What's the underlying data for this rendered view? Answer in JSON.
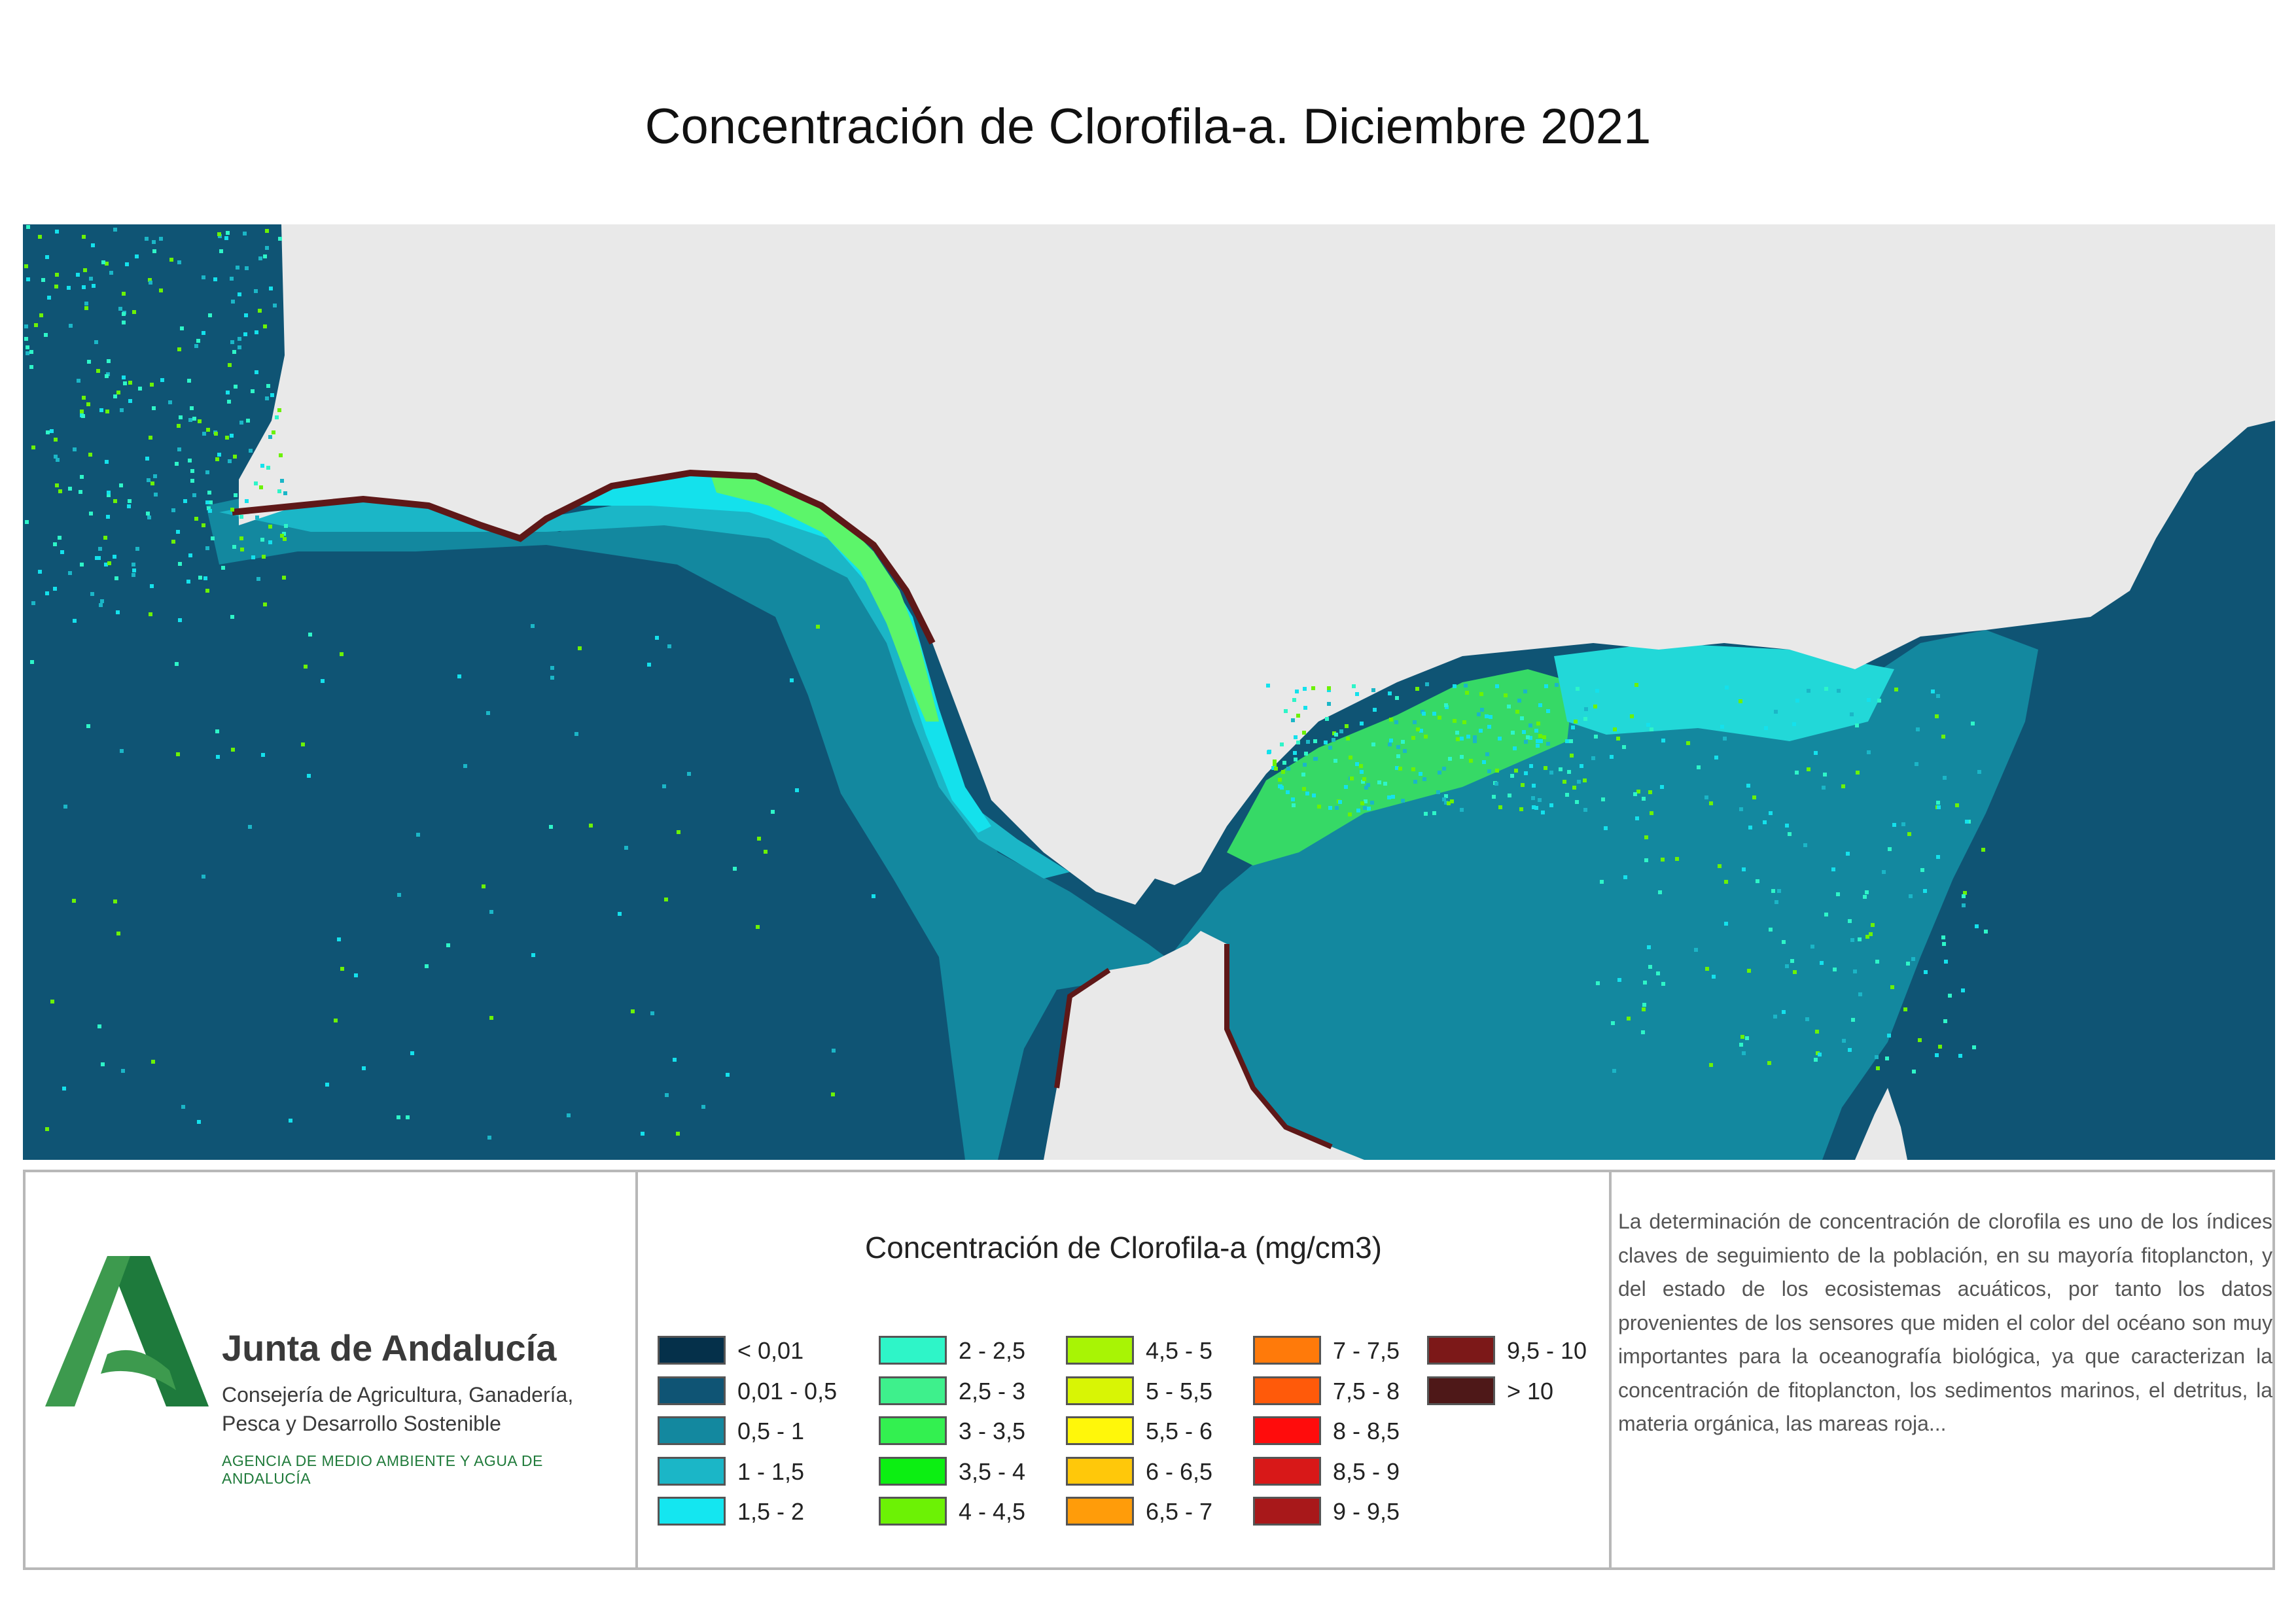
{
  "title": "Concentración de Clorofila-a. Diciembre 2021",
  "map": {
    "colors": {
      "land": "#e9e9e9",
      "ocean_deep": "#0f5474",
      "ocean_mid": "#13889f",
      "shelf_1": "#1bb6c7",
      "shelf_2": "#14e1ec",
      "coast_high": "#5e1818"
    }
  },
  "logo": {
    "org_name": "Junta de Andalucía",
    "dept": "Consejería de Agricultura, Ganadería, Pesca y Desarrollo Sostenible",
    "agency": "AGENCIA DE MEDIO AMBIENTE Y AGUA DE ANDALUCÍA",
    "colors": {
      "dark_green": "#1e7a3c",
      "light_green": "#3d9a4e"
    }
  },
  "legend": {
    "title": "Concentración de Clorofila-a (mg/cm3)",
    "items": [
      {
        "label": "< 0,01",
        "color": "#05304a"
      },
      {
        "label": "0,01 - 0,5",
        "color": "#0f5474"
      },
      {
        "label": "0,5 - 1",
        "color": "#13889f"
      },
      {
        "label": "1 - 1,5",
        "color": "#1bb6c7"
      },
      {
        "label": "1,5 - 2",
        "color": "#14e6f0"
      },
      {
        "label": "2 - 2,5",
        "color": "#2ef5c8"
      },
      {
        "label": "2,5 - 3",
        "color": "#3ef08c"
      },
      {
        "label": "3 - 3,5",
        "color": "#33f050"
      },
      {
        "label": "3,5 - 4",
        "color": "#0cef12"
      },
      {
        "label": "4 - 4,5",
        "color": "#6cf205"
      },
      {
        "label": "4,5 - 5",
        "color": "#a8f405"
      },
      {
        "label": "5 - 5,5",
        "color": "#d8f505"
      },
      {
        "label": "5,5 - 6",
        "color": "#fff70a"
      },
      {
        "label": "6 - 6,5",
        "color": "#ffc80a"
      },
      {
        "label": "6,5 - 7",
        "color": "#ff9c0a"
      },
      {
        "label": "7 - 7,5",
        "color": "#ff7a0a"
      },
      {
        "label": "7,5 - 8",
        "color": "#ff5a0a"
      },
      {
        "label": "8 - 8,5",
        "color": "#ff0c0c"
      },
      {
        "label": "8,5 - 9",
        "color": "#d81818"
      },
      {
        "label": "9 - 9,5",
        "color": "#a8181a"
      },
      {
        "label": "9,5 - 10",
        "color": "#7c1818"
      },
      {
        "label": "> 10",
        "color": "#4e1818"
      }
    ]
  },
  "description": "La determinación de concentración de clorofila es uno de los índices claves de seguimiento de la población, en su mayoría fitoplancton, y del estado de los ecosistemas acuáticos, por tanto los datos provenientes de los sensores que miden el color del océano son muy importantes para la oceanografía biológica, ya que caracterizan la concentración de fitoplancton, los sedimentos marinos, el detritus, la materia orgánica, las mareas roja..."
}
